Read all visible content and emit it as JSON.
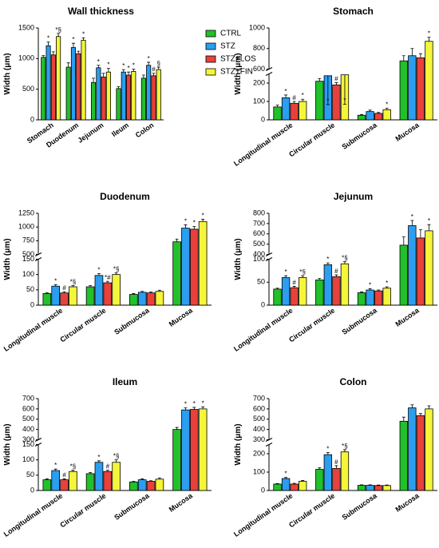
{
  "chart_data": [
    {
      "type": "bar",
      "title": "Wall thickness",
      "y_label": "Width (μm)",
      "categories": [
        "Stomach",
        "Duodenum",
        "Jejunum",
        "Ileum",
        "Colon"
      ],
      "ylim": [
        0,
        1500
      ],
      "yticks": [
        0,
        500,
        1000,
        1500
      ],
      "series": [
        {
          "name": "CTRL",
          "color": "#22c02a",
          "values": [
            1020,
            860,
            610,
            510,
            680
          ],
          "errors": [
            30,
            70,
            70,
            30,
            50
          ],
          "annotations": [
            null,
            null,
            null,
            null,
            null
          ]
        },
        {
          "name": "STZ",
          "color": "#2b9ef0",
          "values": [
            1210,
            1180,
            850,
            780,
            890
          ],
          "errors": [
            60,
            70,
            40,
            40,
            50
          ],
          "annotations": [
            "*",
            "*",
            "*",
            "*",
            "*"
          ]
        },
        {
          "name": "STZ+LOS",
          "color": "#e8413c",
          "values": [
            1060,
            1080,
            700,
            730,
            720
          ],
          "errors": [
            50,
            40,
            60,
            50,
            40
          ],
          "annotations": [
            null,
            null,
            null,
            "*",
            "#"
          ]
        },
        {
          "name": "STZ+FIN",
          "color": "#f5f53a",
          "values": [
            1360,
            1300,
            780,
            790,
            820
          ],
          "errors": [
            50,
            40,
            60,
            40,
            40
          ],
          "annotations": [
            "*§",
            "*",
            "*",
            "*",
            "§"
          ]
        }
      ]
    },
    {
      "type": "bar",
      "title": "Stomach",
      "y_label": "Width (μm)",
      "categories": [
        "Longitudinal muscle",
        "Circular muscle",
        "Submucosa",
        "Mucosa"
      ],
      "ylim": [
        0,
        1000
      ],
      "ybreak": [
        250,
        600
      ],
      "yticks": [
        0,
        100,
        200,
        600,
        800,
        1000
      ],
      "series": [
        {
          "color": "#22c02a",
          "values": [
            70,
            210,
            25,
            680
          ],
          "errors": [
            10,
            15,
            4,
            50
          ],
          "annotations": [
            null,
            null,
            null,
            null
          ]
        },
        {
          "color": "#2b9ef0",
          "values": [
            120,
            240,
            45,
            730
          ],
          "errors": [
            15,
            15,
            8,
            70
          ],
          "annotations": [
            "*",
            "*",
            null,
            null
          ]
        },
        {
          "color": "#e8413c",
          "values": [
            90,
            190,
            35,
            710
          ],
          "errors": [
            10,
            12,
            5,
            40
          ],
          "annotations": [
            "#",
            "#",
            null,
            null
          ]
        },
        {
          "color": "#f5f53a",
          "values": [
            100,
            245,
            55,
            870
          ],
          "errors": [
            12,
            12,
            8,
            40
          ],
          "annotations": [
            "*",
            "*",
            "*",
            "*"
          ]
        }
      ]
    },
    {
      "type": "bar",
      "title": "Duodenum",
      "y_label": "Width (μm)",
      "categories": [
        "Longitudinal muscle",
        "Circular muscle",
        "Submucosa",
        "Mucosa"
      ],
      "ylim": [
        0,
        1250
      ],
      "ybreak": [
        150,
        500
      ],
      "yticks": [
        0,
        50,
        100,
        150,
        500,
        750,
        1000,
        1250
      ],
      "series": [
        {
          "color": "#22c02a",
          "values": [
            38,
            60,
            35,
            730
          ],
          "errors": [
            3,
            4,
            3,
            50
          ],
          "annotations": [
            null,
            null,
            null,
            null
          ]
        },
        {
          "color": "#2b9ef0",
          "values": [
            62,
            97,
            42,
            980
          ],
          "errors": [
            5,
            6,
            3,
            60
          ],
          "annotations": [
            "*",
            "*",
            null,
            "*"
          ]
        },
        {
          "color": "#e8413c",
          "values": [
            40,
            73,
            40,
            960
          ],
          "errors": [
            4,
            5,
            3,
            50
          ],
          "annotations": [
            "#",
            "*#",
            null,
            "*"
          ]
        },
        {
          "color": "#f5f53a",
          "values": [
            60,
            100,
            45,
            1100
          ],
          "errors": [
            4,
            6,
            4,
            40
          ],
          "annotations": [
            "*§",
            "*§",
            null,
            "*"
          ]
        }
      ]
    },
    {
      "type": "bar",
      "title": "Jejunum",
      "y_label": "Width (μm)",
      "categories": [
        "Longitudinal muscle",
        "Circular muscle",
        "Submucosa",
        "Mucosa"
      ],
      "ylim": [
        0,
        800
      ],
      "ybreak": [
        100,
        400
      ],
      "yticks": [
        0,
        50,
        100,
        400,
        500,
        600,
        700,
        800
      ],
      "series": [
        {
          "color": "#22c02a",
          "values": [
            35,
            55,
            27,
            490
          ],
          "errors": [
            2,
            3,
            2,
            80
          ],
          "annotations": [
            null,
            null,
            null,
            null
          ]
        },
        {
          "color": "#2b9ef0",
          "values": [
            60,
            88,
            33,
            680
          ],
          "errors": [
            4,
            4,
            3,
            50
          ],
          "annotations": [
            "*",
            "*",
            "*",
            "*"
          ]
        },
        {
          "color": "#e8413c",
          "values": [
            38,
            62,
            31,
            560
          ],
          "errors": [
            3,
            4,
            2,
            80
          ],
          "annotations": [
            "#",
            "#",
            null,
            null
          ]
        },
        {
          "color": "#f5f53a",
          "values": [
            60,
            90,
            37,
            630
          ],
          "errors": [
            4,
            5,
            3,
            60
          ],
          "annotations": [
            "*§",
            "*§",
            "*",
            "*"
          ]
        }
      ]
    },
    {
      "type": "bar",
      "title": "Ileum",
      "y_label": "Width (μm)",
      "categories": [
        "Longitudinal muscle",
        "Circular muscle",
        "Submucosa",
        "Mucosa"
      ],
      "ylim": [
        0,
        700
      ],
      "ybreak": [
        150,
        300
      ],
      "yticks": [
        0,
        50,
        100,
        150,
        300,
        400,
        500,
        600,
        700
      ],
      "series": [
        {
          "color": "#22c02a",
          "values": [
            35,
            55,
            28,
            400
          ],
          "errors": [
            3,
            4,
            2,
            20
          ],
          "annotations": [
            null,
            null,
            null,
            null
          ]
        },
        {
          "color": "#2b9ef0",
          "values": [
            65,
            92,
            35,
            590
          ],
          "errors": [
            5,
            5,
            3,
            20
          ],
          "annotations": [
            "*",
            "*",
            null,
            "*"
          ]
        },
        {
          "color": "#e8413c",
          "values": [
            35,
            62,
            30,
            595
          ],
          "errors": [
            3,
            4,
            2,
            20
          ],
          "annotations": [
            "#",
            "#",
            null,
            "*"
          ]
        },
        {
          "color": "#f5f53a",
          "values": [
            62,
            92,
            37,
            600
          ],
          "errors": [
            4,
            8,
            4,
            20
          ],
          "annotations": [
            "*§",
            "*§",
            null,
            "*"
          ]
        }
      ]
    },
    {
      "type": "bar",
      "title": "Colon",
      "y_label": "Width (μm)",
      "categories": [
        "Longitudinal muscle",
        "Circular muscle",
        "Submucosa",
        "Mucosa"
      ],
      "ylim": [
        0,
        700
      ],
      "ybreak": [
        250,
        300
      ],
      "yticks": [
        0,
        100,
        200,
        300,
        400,
        500,
        600,
        700
      ],
      "series": [
        {
          "color": "#22c02a",
          "values": [
            35,
            115,
            28,
            480
          ],
          "errors": [
            3,
            8,
            3,
            40
          ],
          "annotations": [
            null,
            null,
            null,
            null
          ]
        },
        {
          "color": "#2b9ef0",
          "values": [
            65,
            195,
            28,
            610
          ],
          "errors": [
            6,
            12,
            3,
            30
          ],
          "annotations": [
            "*",
            "*",
            null,
            null
          ]
        },
        {
          "color": "#e8413c",
          "values": [
            35,
            120,
            27,
            535
          ],
          "errors": [
            4,
            15,
            3,
            20
          ],
          "annotations": [
            null,
            "#",
            null,
            null
          ]
        },
        {
          "color": "#f5f53a",
          "values": [
            50,
            210,
            27,
            600
          ],
          "errors": [
            4,
            12,
            3,
            30
          ],
          "annotations": [
            null,
            "*§",
            null,
            null
          ]
        }
      ]
    }
  ]
}
